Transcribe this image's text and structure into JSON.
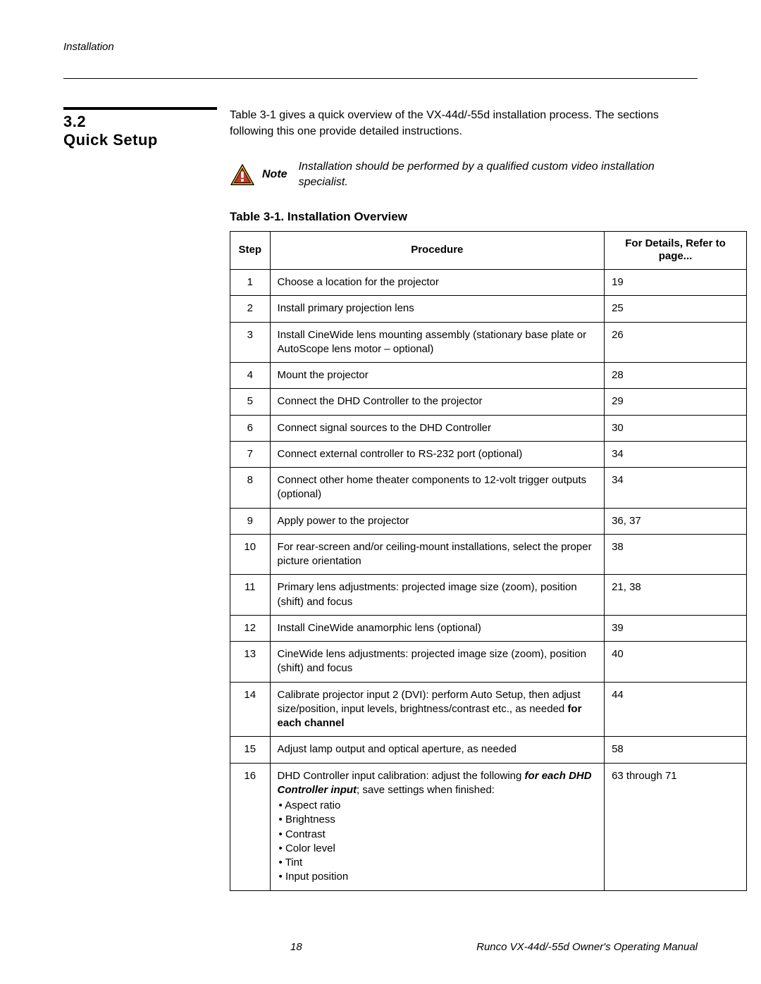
{
  "doc": {
    "running_header": "Installation",
    "section_number": "3.2",
    "section_title": "Quick Setup",
    "intro": "Table 3-1 gives a quick overview of the VX-44d/-55d installation process. The sections following this one provide detailed instructions.",
    "note_label": "Note",
    "note_text": "Installation should be performed by a qualified custom video installation specialist.",
    "table_caption": "Table 3-1. Installation Overview",
    "page_number": "18",
    "footer_text": "Runco VX-44d/-55d Owner's Operating Manual"
  },
  "table": {
    "headers": {
      "step": "Step",
      "procedure": "Procedure",
      "page": "For Details, Refer to page..."
    },
    "rows": [
      {
        "step": "1",
        "procedure": "Choose a location for the projector",
        "page": "19"
      },
      {
        "step": "2",
        "procedure": "Install primary projection lens",
        "page": "25"
      },
      {
        "step": "3",
        "procedure": "Install CineWide lens mounting assembly (stationary base plate or AutoScope lens motor – optional)",
        "page": "26"
      },
      {
        "step": "4",
        "procedure": "Mount the projector",
        "page": "28"
      },
      {
        "step": "5",
        "procedure": "Connect the DHD Controller to the projector",
        "page": "29"
      },
      {
        "step": "6",
        "procedure": "Connect signal sources to the DHD Controller",
        "page": "30"
      },
      {
        "step": "7",
        "procedure": "Connect external controller to RS-232 port (optional)",
        "page": "34"
      },
      {
        "step": "8",
        "procedure": "Connect other home theater components to 12-volt trigger outputs (optional)",
        "page": "34"
      },
      {
        "step": "9",
        "procedure": "Apply power to the projector",
        "page": "36, 37"
      },
      {
        "step": "10",
        "procedure": "For rear-screen and/or ceiling-mount installations, select the proper picture orientation",
        "page": "38"
      },
      {
        "step": "11",
        "procedure": "Primary lens adjustments: projected image size (zoom), position (shift) and focus",
        "page": "21, 38"
      },
      {
        "step": "12",
        "procedure": "Install CineWide anamorphic lens (optional)",
        "page": "39"
      },
      {
        "step": "13",
        "procedure": "CineWide lens adjustments: projected image size (zoom), position (shift) and focus",
        "page": "40"
      },
      {
        "step": "14",
        "procedure_html": "Calibrate projector input 2 (DVI): perform Auto Setup, then adjust size/position, input levels, brightness/contrast etc., as needed <span class=\"proc-bold-inline\">for each channel</span>",
        "page": "44"
      },
      {
        "step": "15",
        "procedure": "Adjust lamp output and optical aperture, as needed",
        "page": "58"
      },
      {
        "step": "16",
        "procedure_html": "DHD Controller input calibration: adjust the following <span class=\"proc-italic-inline\">for each DHD Controller input</span>; save settings when finished:<ul class=\"proc-list\"><li>Aspect ratio</li><li>Brightness</li><li>Contrast</li><li>Color level</li><li>Tint</li><li>Input position</li></ul>",
        "page": "63 through 71"
      }
    ]
  },
  "style": {
    "note_icon_stroke": "#000000",
    "note_icon_fill_outer": "#f7b733",
    "note_icon_fill_inner": "#c0392b"
  }
}
